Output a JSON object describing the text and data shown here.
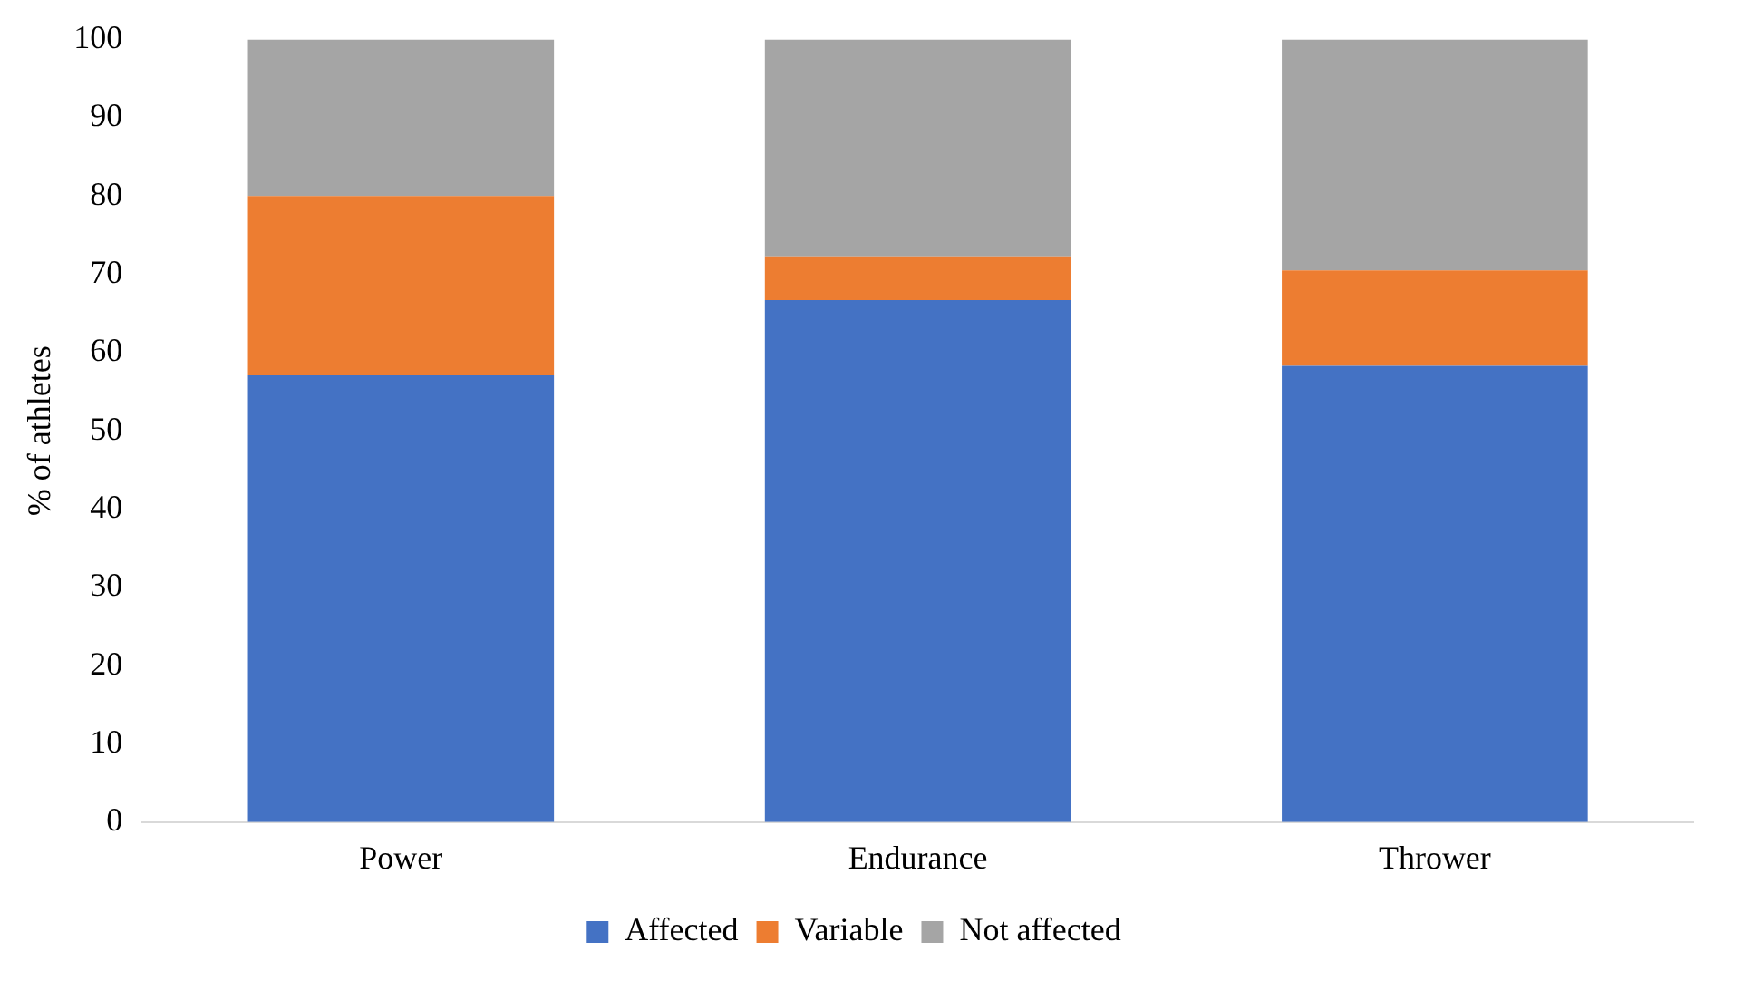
{
  "chart_data": {
    "type": "bar",
    "stacked": true,
    "ylabel": "% of athletes",
    "categories": [
      "Power",
      "Endurance",
      "Thrower"
    ],
    "series": [
      {
        "name": "Affected",
        "color": "#4472c4",
        "values": [
          57.1,
          66.7,
          58.3
        ]
      },
      {
        "name": "Variable",
        "color": "#ed7d31",
        "values": [
          22.9,
          5.6,
          12.2
        ]
      },
      {
        "name": "Not affected",
        "color": "#a5a5a5",
        "values": [
          20,
          27.7,
          29.5
        ]
      }
    ],
    "ylim": [
      0,
      100
    ],
    "yticks": [
      0,
      10,
      20,
      30,
      40,
      50,
      60,
      70,
      80,
      90,
      100
    ],
    "grid": false,
    "legend": "bottom"
  }
}
